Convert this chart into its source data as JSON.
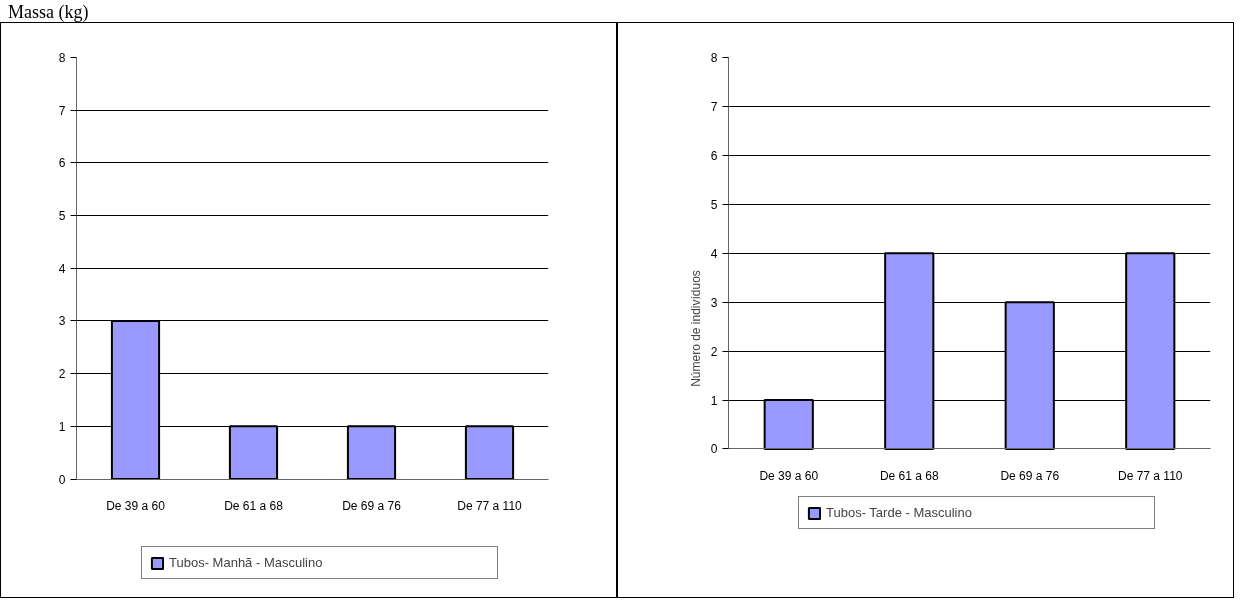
{
  "chart_data": [
    {
      "type": "bar",
      "title": "Massa (kg)",
      "categories": [
        "De 39 a 60",
        "De 61 a 68",
        "De 69 a 76",
        "De 77 a 110"
      ],
      "series": [
        {
          "name": "Tubos- Manhã - Masculino",
          "color": "#9999ff",
          "values": [
            3,
            1,
            1,
            1
          ]
        }
      ],
      "ylim": [
        0,
        8
      ],
      "yticks": [
        0,
        1,
        2,
        3,
        4,
        5,
        6,
        7,
        8
      ],
      "grid": "y",
      "legend": "bottom"
    },
    {
      "type": "bar",
      "ylabel": "Número de indivíduos",
      "categories": [
        "De 39 a 60",
        "De 61 a 68",
        "De 69 a 76",
        "De 77 a 110"
      ],
      "series": [
        {
          "name": "Tubos- Tarde - Masculino",
          "color": "#9999ff",
          "values": [
            1,
            4,
            3,
            4
          ]
        }
      ],
      "ylim": [
        0,
        8
      ],
      "yticks": [
        0,
        1,
        2,
        3,
        4,
        5,
        6,
        7,
        8
      ],
      "grid": "y",
      "legend": "bottom"
    }
  ]
}
